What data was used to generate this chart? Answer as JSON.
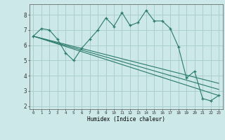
{
  "xlabel": "Humidex (Indice chaleur)",
  "bg_color": "#cce8e8",
  "grid_color": "#aacfcf",
  "line_color": "#2a7a6a",
  "xlim": [
    -0.5,
    23.5
  ],
  "ylim": [
    1.8,
    8.7
  ],
  "yticks": [
    2,
    3,
    4,
    5,
    6,
    7,
    8
  ],
  "xticks": [
    0,
    1,
    2,
    3,
    4,
    5,
    6,
    7,
    8,
    9,
    10,
    11,
    12,
    13,
    14,
    15,
    16,
    17,
    18,
    19,
    20,
    21,
    22,
    23
  ],
  "series1_x": [
    0,
    1,
    2,
    3,
    4,
    5,
    6,
    7,
    8,
    9,
    10,
    11,
    12,
    13,
    14,
    15,
    16,
    17,
    18,
    19,
    20,
    21,
    22,
    23
  ],
  "series1_y": [
    6.6,
    7.1,
    7.0,
    6.4,
    5.5,
    5.0,
    5.8,
    6.4,
    7.0,
    7.8,
    7.25,
    8.15,
    7.3,
    7.5,
    8.3,
    7.6,
    7.6,
    7.1,
    5.9,
    3.85,
    4.3,
    2.5,
    2.35,
    2.7
  ],
  "series2_x": [
    0,
    23
  ],
  "series2_y": [
    6.6,
    2.7
  ],
  "series3_x": [
    0,
    23
  ],
  "series3_y": [
    6.6,
    3.1
  ],
  "series4_x": [
    0,
    23
  ],
  "series4_y": [
    6.6,
    3.5
  ]
}
